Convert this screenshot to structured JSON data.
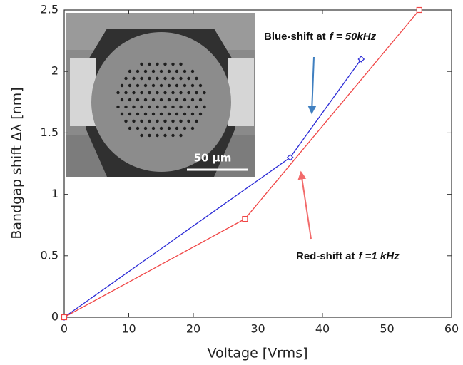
{
  "chart_data": {
    "type": "line",
    "xlabel": "Voltage [Vrms]",
    "ylabel": "Bandgap shift Δλ [nm]",
    "series": [
      {
        "color": "#2b2bd6",
        "marker": "diamond",
        "x": [
          0,
          35,
          46
        ],
        "values": [
          0,
          1.3,
          2.1
        ]
      },
      {
        "color": "#f04545",
        "marker": "square",
        "x": [
          0,
          28,
          55
        ],
        "values": [
          0,
          0.8,
          2.5
        ]
      }
    ],
    "xlim": [
      0,
      60
    ],
    "xticks": [
      0,
      10,
      20,
      30,
      40,
      50,
      60
    ],
    "ylim": [
      0,
      2.5
    ],
    "yticks": [
      0,
      0.5,
      1,
      1.5,
      2,
      2.5
    ],
    "annotations": [
      {
        "text": "Blue-shift at",
        "variable": "f = 50kHz",
        "arrow_color": "#3f7fc0"
      },
      {
        "text": "Red-shift at",
        "variable": "f =1 kHz",
        "arrow_color": "#f26b6b"
      }
    ],
    "inset_scale_label": "50 μm"
  }
}
